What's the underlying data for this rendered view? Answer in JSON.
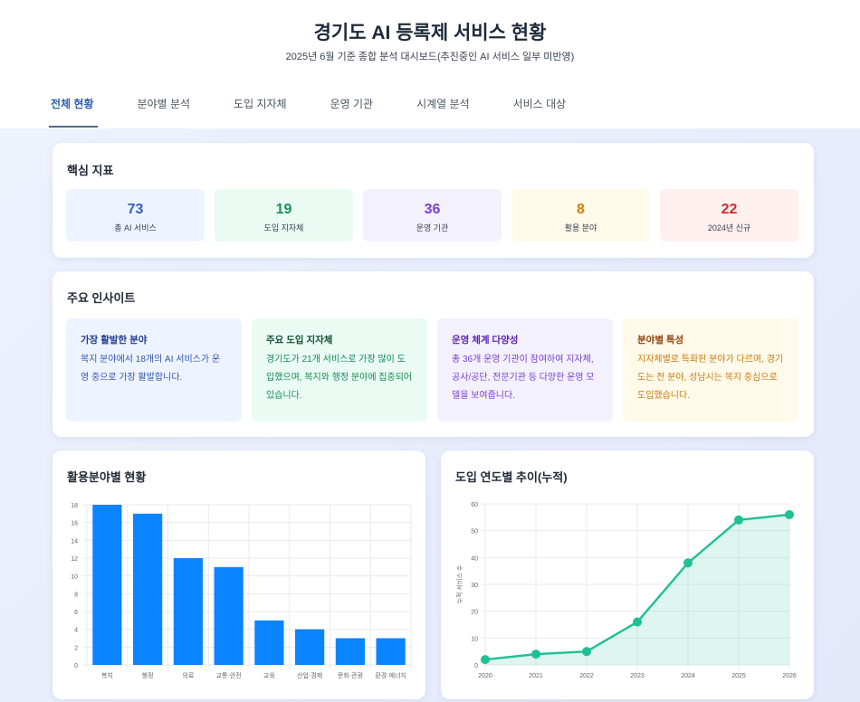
{
  "header": {
    "title": "경기도 AI 등록제 서비스 현황",
    "subtitle": "2025년 6월 기준 종합 분석 대시보드(추진중인 AI 서비스 일부 미반영)"
  },
  "tabs": [
    {
      "label": "전체 현황",
      "active": true
    },
    {
      "label": "분야별 분석",
      "active": false
    },
    {
      "label": "도입 지자체",
      "active": false
    },
    {
      "label": "운영 기관",
      "active": false
    },
    {
      "label": "시계열 분석",
      "active": false
    },
    {
      "label": "서비스 대상",
      "active": false
    }
  ],
  "kpi": {
    "title": "핵심 지표",
    "items": [
      {
        "value": "73",
        "label": "총 AI 서비스",
        "color": "#3461c7",
        "bg": "#eef4ff"
      },
      {
        "value": "19",
        "label": "도입 지자체",
        "color": "#15915e",
        "bg": "#eafbf3"
      },
      {
        "value": "36",
        "label": "운영 기관",
        "color": "#7a3fd1",
        "bg": "#f4f1ff"
      },
      {
        "value": "8",
        "label": "활용 분야",
        "color": "#d97a0a",
        "bg": "#fffae9"
      },
      {
        "value": "22",
        "label": "2024년 신규",
        "color": "#cf2a2a",
        "bg": "#fff0f0"
      }
    ]
  },
  "insights": {
    "title": "주요 인사이트",
    "items": [
      {
        "heading": "가장 활발한 분야",
        "text": "복지 분야에서 18개의 AI 서비스가 운영 중으로 가장 활발합니다.",
        "color": "#2f55b5",
        "heading_color": "#1e3a8a",
        "bg": "#eef4ff"
      },
      {
        "heading": "주요 도입 지자체",
        "text": "경기도가 21개 서비스로 가장 많이 도입했으며, 복지와 행정 분야에 집중되어 있습니다.",
        "color": "#138a58",
        "heading_color": "#0f5132",
        "bg": "#eafbf3"
      },
      {
        "heading": "운영 체계 다양성",
        "text": "총 36개 운영 기관이 참여하여 지자체, 공사/공단, 전문기관 등 다양한 운영 모델을 보여줍니다.",
        "color": "#7a3fd1",
        "heading_color": "#5b21b6",
        "bg": "#f4f1ff"
      },
      {
        "heading": "분야별 특성",
        "text": "지자체별로 특화된 분야가 다르며, 경기도는 전 분야, 성남시는 복지 중심으로 도입했습니다.",
        "color": "#cc7a12",
        "heading_color": "#92400e",
        "bg": "#fffae9"
      }
    ]
  },
  "chart_data": [
    {
      "type": "bar",
      "title": "활용분야별 현황",
      "categories": [
        "복지",
        "행정",
        "의료",
        "교통·안전",
        "교육",
        "산업·경제",
        "문화·관광",
        "환경·에너지"
      ],
      "values": [
        18,
        17,
        12,
        11,
        5,
        4,
        3,
        3
      ],
      "xlabel": "",
      "ylabel": "",
      "ylim": [
        0,
        18
      ],
      "yticks": [
        0,
        2,
        4,
        6,
        8,
        10,
        12,
        14,
        16,
        18
      ],
      "grid": true,
      "legend": "none",
      "color": "#0a84ff"
    },
    {
      "type": "area",
      "title": "도입 연도별 추이(누적)",
      "x": [
        "2020",
        "2021",
        "2022",
        "2023",
        "2024",
        "2025",
        "2026"
      ],
      "values": [
        2,
        4,
        5,
        16,
        38,
        54,
        56
      ],
      "xlabel": "",
      "ylabel": "누적 서비스 수",
      "ylim": [
        0,
        60
      ],
      "yticks": [
        0,
        10,
        20,
        30,
        40,
        50,
        60
      ],
      "grid": true,
      "legend": "none",
      "color": "#1fbf97"
    }
  ]
}
